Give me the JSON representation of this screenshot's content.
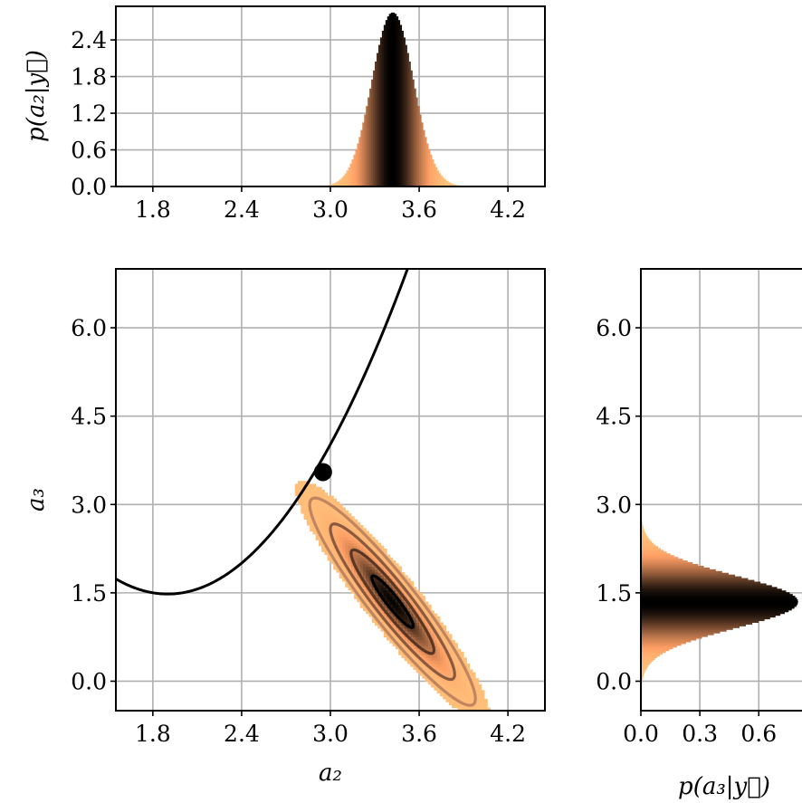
{
  "chart_data": [
    {
      "type": "histogram",
      "name_id": "marginal-a2",
      "ylabel": "p(a₂|y⃗)",
      "xlim": [
        1.55,
        4.45
      ],
      "ylim": [
        0,
        2.95
      ],
      "xticks": [
        "1.8",
        "2.4",
        "3.0",
        "3.6",
        "4.2"
      ],
      "xtick_values": [
        1.8,
        2.4,
        3.0,
        3.6,
        4.2
      ],
      "yticks": [
        "0.0",
        "0.6",
        "1.2",
        "1.8",
        "2.4"
      ],
      "ytick_values": [
        0.0,
        0.6,
        1.2,
        1.8,
        2.4
      ],
      "distribution": {
        "mean": 3.42,
        "sd": 0.14,
        "peak": 2.85
      },
      "colormap": "copper_r",
      "grid": true
    },
    {
      "type": "heatmap",
      "name_id": "joint-a2-a3",
      "xlabel": "a₂",
      "ylabel": "a₃",
      "xlim": [
        1.55,
        4.45
      ],
      "ylim": [
        -0.5,
        7.0
      ],
      "xticks": [
        "1.8",
        "2.4",
        "3.0",
        "3.6",
        "4.2"
      ],
      "xtick_values": [
        1.8,
        2.4,
        3.0,
        3.6,
        4.2
      ],
      "yticks": [
        "0.0",
        "1.5",
        "3.0",
        "4.5",
        "6.0"
      ],
      "ytick_values": [
        0.0,
        1.5,
        3.0,
        4.5,
        6.0
      ],
      "distribution": {
        "mean_a2": 3.42,
        "mean_a3": 1.35,
        "sd_a2": 0.14,
        "sd_a3": 0.44,
        "rho": -0.935
      },
      "contour_levels_sigma": [
        1,
        2,
        3,
        4
      ],
      "contour_colors": [
        "#000000",
        "#5a3724",
        "#8a5a40",
        "#c08560"
      ],
      "curve": {
        "type": "parabola",
        "vertex_a2": 1.9,
        "vertex_a3": 1.48,
        "coef": 2.1,
        "x_range": [
          1.55,
          3.6
        ]
      },
      "marker": {
        "a2": 2.95,
        "a3": 3.55
      },
      "colormap": "copper_r",
      "grid": true
    },
    {
      "type": "histogram",
      "name_id": "marginal-a3",
      "orientation": "horizontal",
      "xlabel": "p(a₃|y⃗)",
      "xlim": [
        0,
        0.82
      ],
      "ylim": [
        -0.5,
        7.0
      ],
      "xticks": [
        "0.0",
        "0.3",
        "0.6"
      ],
      "xtick_values": [
        0.0,
        0.3,
        0.6
      ],
      "yticks": [
        "0.0",
        "1.5",
        "3.0",
        "4.5",
        "6.0"
      ],
      "ytick_values": [
        0.0,
        1.5,
        3.0,
        4.5,
        6.0
      ],
      "distribution": {
        "mean": 1.35,
        "sd": 0.44,
        "peak": 0.8
      },
      "colormap": "copper_r",
      "grid": true
    }
  ]
}
